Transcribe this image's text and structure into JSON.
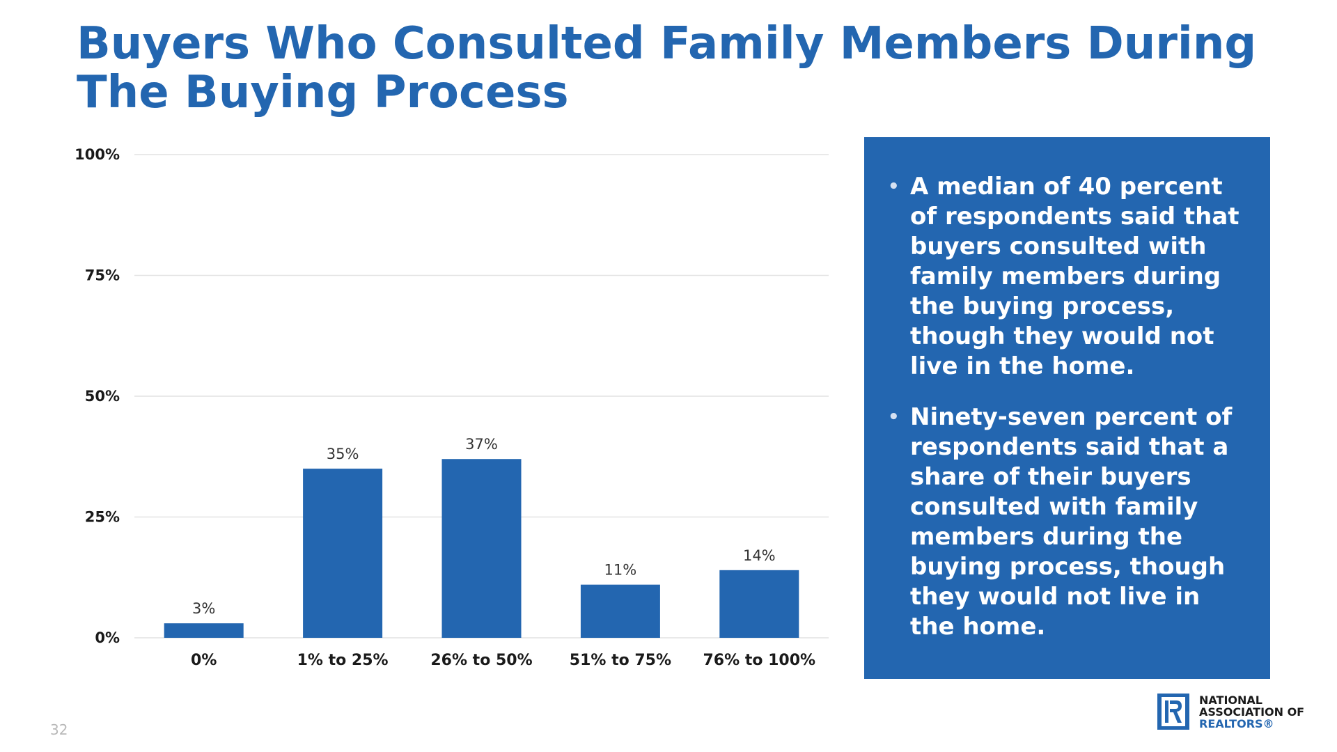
{
  "title": "Buyers Who Consulted Family Members During The Buying Process",
  "chart_data": {
    "type": "bar",
    "categories": [
      "0%",
      "1% to 25%",
      "26% to 50%",
      "51% to 75%",
      "76% to 100%"
    ],
    "values": [
      3,
      35,
      37,
      11,
      14
    ],
    "data_labels": [
      "3%",
      "35%",
      "37%",
      "11%",
      "14%"
    ],
    "y_ticks": [
      "0%",
      "25%",
      "50%",
      "75%",
      "100%"
    ],
    "ylim": [
      0,
      100
    ],
    "grid": true,
    "bar_color": "#2366B0"
  },
  "panel": {
    "bullets": [
      "A median of 40 percent of respondents said that buyers consulted with family members during the buying process, though they would not live in the home.",
      "Ninety-seven percent of respondents said that a share of their buyers consulted with family members during the buying process, though they would not live in the home."
    ],
    "bullet_glyph": "•",
    "background_color": "#2366B0"
  },
  "page_number": "32",
  "logo": {
    "lines": [
      "NATIONAL",
      "ASSOCIATION OF",
      "REALTORS®"
    ],
    "mark_icon": "realtor-r-logo-icon"
  }
}
